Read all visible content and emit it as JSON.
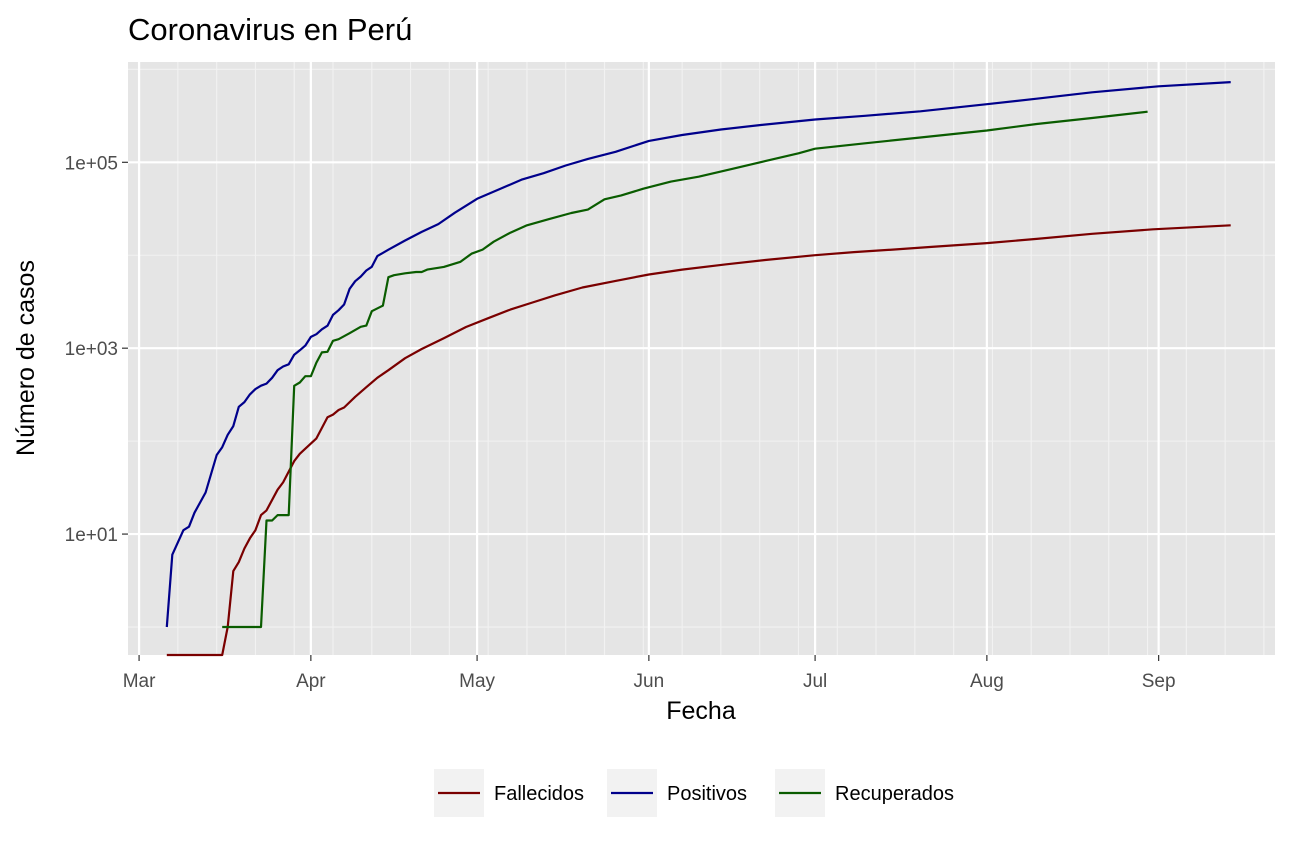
{
  "chart_data": {
    "type": "line",
    "title": "Coronavirus en Perú",
    "xlabel": "Fecha",
    "ylabel": "Número de casos",
    "yscale": "log10",
    "ylim": [
      0.5,
      1200000
    ],
    "xlim": [
      "2020-02-28",
      "2020-09-22"
    ],
    "x_ticks": [
      {
        "date": "2020-03-01",
        "label": "Mar"
      },
      {
        "date": "2020-04-01",
        "label": "Apr"
      },
      {
        "date": "2020-05-01",
        "label": "May"
      },
      {
        "date": "2020-06-01",
        "label": "Jun"
      },
      {
        "date": "2020-07-01",
        "label": "Jul"
      },
      {
        "date": "2020-08-01",
        "label": "Aug"
      },
      {
        "date": "2020-09-01",
        "label": "Sep"
      }
    ],
    "y_ticks": [
      {
        "value": 10,
        "label": "1e+01"
      },
      {
        "value": 1000,
        "label": "1e+03"
      },
      {
        "value": 100000,
        "label": "1e+05"
      }
    ],
    "grid": true,
    "panel_background": "#e5e5e5",
    "legend_position": "bottom",
    "series": [
      {
        "name": "Fallecidos",
        "color": "#7a0000",
        "points": [
          [
            "2020-03-06",
            0.5
          ],
          [
            "2020-03-16",
            0.5
          ],
          [
            "2020-03-17",
            1
          ],
          [
            "2020-03-18",
            4
          ],
          [
            "2020-03-19",
            5
          ],
          [
            "2020-03-20",
            7
          ],
          [
            "2020-03-21",
            9
          ],
          [
            "2020-03-22",
            11
          ],
          [
            "2020-03-23",
            16
          ],
          [
            "2020-03-24",
            18
          ],
          [
            "2020-03-26",
            30
          ],
          [
            "2020-03-27",
            36
          ],
          [
            "2020-03-28",
            47
          ],
          [
            "2020-03-29",
            61
          ],
          [
            "2020-03-30",
            73
          ],
          [
            "2020-03-31",
            83
          ],
          [
            "2020-04-02",
            107
          ],
          [
            "2020-04-04",
            181
          ],
          [
            "2020-04-05",
            193
          ],
          [
            "2020-04-06",
            216
          ],
          [
            "2020-04-07",
            230
          ],
          [
            "2020-04-09",
            300
          ],
          [
            "2020-04-11",
            380
          ],
          [
            "2020-04-13",
            480
          ],
          [
            "2020-04-15",
            580
          ],
          [
            "2020-04-18",
            780
          ],
          [
            "2020-04-21",
            980
          ],
          [
            "2020-04-25",
            1280
          ],
          [
            "2020-04-29",
            1690
          ],
          [
            "2020-05-03",
            2100
          ],
          [
            "2020-05-07",
            2600
          ],
          [
            "2020-05-11",
            3100
          ],
          [
            "2020-05-15",
            3700
          ],
          [
            "2020-05-20",
            4500
          ],
          [
            "2020-05-26",
            5300
          ],
          [
            "2020-06-01",
            6200
          ],
          [
            "2020-06-07",
            7000
          ],
          [
            "2020-06-15",
            8000
          ],
          [
            "2020-06-22",
            8900
          ],
          [
            "2020-07-01",
            10000
          ],
          [
            "2020-07-08",
            10800
          ],
          [
            "2020-07-15",
            11500
          ],
          [
            "2020-07-22",
            12300
          ],
          [
            "2020-08-01",
            13500
          ],
          [
            "2020-08-10",
            15000
          ],
          [
            "2020-08-20",
            17000
          ],
          [
            "2020-08-31",
            19000
          ],
          [
            "2020-09-14",
            21000
          ]
        ]
      },
      {
        "name": "Positivos",
        "color": "#00008b",
        "points": [
          [
            "2020-03-06",
            1
          ],
          [
            "2020-03-07",
            6
          ],
          [
            "2020-03-09",
            11
          ],
          [
            "2020-03-10",
            12
          ],
          [
            "2020-03-11",
            17
          ],
          [
            "2020-03-13",
            28
          ],
          [
            "2020-03-15",
            71
          ],
          [
            "2020-03-16",
            86
          ],
          [
            "2020-03-17",
            117
          ],
          [
            "2020-03-18",
            145
          ],
          [
            "2020-03-19",
            234
          ],
          [
            "2020-03-20",
            263
          ],
          [
            "2020-03-21",
            318
          ],
          [
            "2020-03-22",
            363
          ],
          [
            "2020-03-23",
            395
          ],
          [
            "2020-03-24",
            416
          ],
          [
            "2020-03-25",
            480
          ],
          [
            "2020-03-26",
            580
          ],
          [
            "2020-03-27",
            635
          ],
          [
            "2020-03-28",
            671
          ],
          [
            "2020-03-29",
            852
          ],
          [
            "2020-03-30",
            950
          ],
          [
            "2020-03-31",
            1065
          ],
          [
            "2020-04-01",
            1323
          ],
          [
            "2020-04-02",
            1414
          ],
          [
            "2020-04-03",
            1595
          ],
          [
            "2020-04-04",
            1746
          ],
          [
            "2020-04-05",
            2281
          ],
          [
            "2020-04-06",
            2561
          ],
          [
            "2020-04-07",
            2954
          ],
          [
            "2020-04-08",
            4342
          ],
          [
            "2020-04-09",
            5256
          ],
          [
            "2020-04-10",
            5897
          ],
          [
            "2020-04-11",
            6848
          ],
          [
            "2020-04-12",
            7519
          ],
          [
            "2020-04-13",
            9784
          ],
          [
            "2020-04-15",
            11475
          ],
          [
            "2020-04-18",
            14420
          ],
          [
            "2020-04-21",
            17837
          ],
          [
            "2020-04-24",
            21648
          ],
          [
            "2020-04-27",
            28699
          ],
          [
            "2020-05-01",
            40459
          ],
          [
            "2020-05-05",
            51189
          ],
          [
            "2020-05-09",
            65015
          ],
          [
            "2020-05-13",
            76306
          ],
          [
            "2020-05-17",
            92273
          ],
          [
            "2020-05-21",
            108769
          ],
          [
            "2020-05-26",
            129751
          ],
          [
            "2020-06-01",
            170039
          ],
          [
            "2020-06-07",
            196515
          ],
          [
            "2020-06-14",
            225132
          ],
          [
            "2020-06-21",
            251338
          ],
          [
            "2020-07-01",
            288477
          ],
          [
            "2020-07-10",
            316448
          ],
          [
            "2020-07-20",
            353590
          ],
          [
            "2020-08-01",
            422183
          ],
          [
            "2020-08-10",
            483133
          ],
          [
            "2020-08-20",
            567059
          ],
          [
            "2020-09-01",
            657129
          ],
          [
            "2020-09-14",
            729619
          ]
        ]
      },
      {
        "name": "Recuperados",
        "color": "#0a5c00",
        "points": [
          [
            "2020-03-16",
            1
          ],
          [
            "2020-03-23",
            1
          ],
          [
            "2020-03-24",
            14
          ],
          [
            "2020-03-25",
            14
          ],
          [
            "2020-03-26",
            16
          ],
          [
            "2020-03-28",
            16
          ],
          [
            "2020-03-29",
            394
          ],
          [
            "2020-03-30",
            427
          ],
          [
            "2020-03-31",
            500
          ],
          [
            "2020-04-01",
            500
          ],
          [
            "2020-04-02",
            700
          ],
          [
            "2020-04-03",
            900
          ],
          [
            "2020-04-04",
            914
          ],
          [
            "2020-04-05",
            1200
          ],
          [
            "2020-04-06",
            1250
          ],
          [
            "2020-04-08",
            1450
          ],
          [
            "2020-04-10",
            1700
          ],
          [
            "2020-04-11",
            1750
          ],
          [
            "2020-04-12",
            2500
          ],
          [
            "2020-04-14",
            2870
          ],
          [
            "2020-04-15",
            5800
          ],
          [
            "2020-04-16",
            6100
          ],
          [
            "2020-04-18",
            6400
          ],
          [
            "2020-04-20",
            6600
          ],
          [
            "2020-04-21",
            6600
          ],
          [
            "2020-04-22",
            7000
          ],
          [
            "2020-04-25",
            7500
          ],
          [
            "2020-04-28",
            8500
          ],
          [
            "2020-04-30",
            10400
          ],
          [
            "2020-05-02",
            11500
          ],
          [
            "2020-05-04",
            14000
          ],
          [
            "2020-05-07",
            17500
          ],
          [
            "2020-05-10",
            21000
          ],
          [
            "2020-05-14",
            24500
          ],
          [
            "2020-05-18",
            28500
          ],
          [
            "2020-05-21",
            31000
          ],
          [
            "2020-05-24",
            40000
          ],
          [
            "2020-05-27",
            44000
          ],
          [
            "2020-05-31",
            52000
          ],
          [
            "2020-06-05",
            62000
          ],
          [
            "2020-06-10",
            70000
          ],
          [
            "2020-06-16",
            85000
          ],
          [
            "2020-06-22",
            103000
          ],
          [
            "2020-06-28",
            125000
          ],
          [
            "2020-07-01",
            140000
          ],
          [
            "2020-07-10",
            160000
          ],
          [
            "2020-07-20",
            185000
          ],
          [
            "2020-08-01",
            220000
          ],
          [
            "2020-08-10",
            258000
          ],
          [
            "2020-08-20",
            300000
          ],
          [
            "2020-08-30",
            350000
          ]
        ]
      }
    ]
  }
}
